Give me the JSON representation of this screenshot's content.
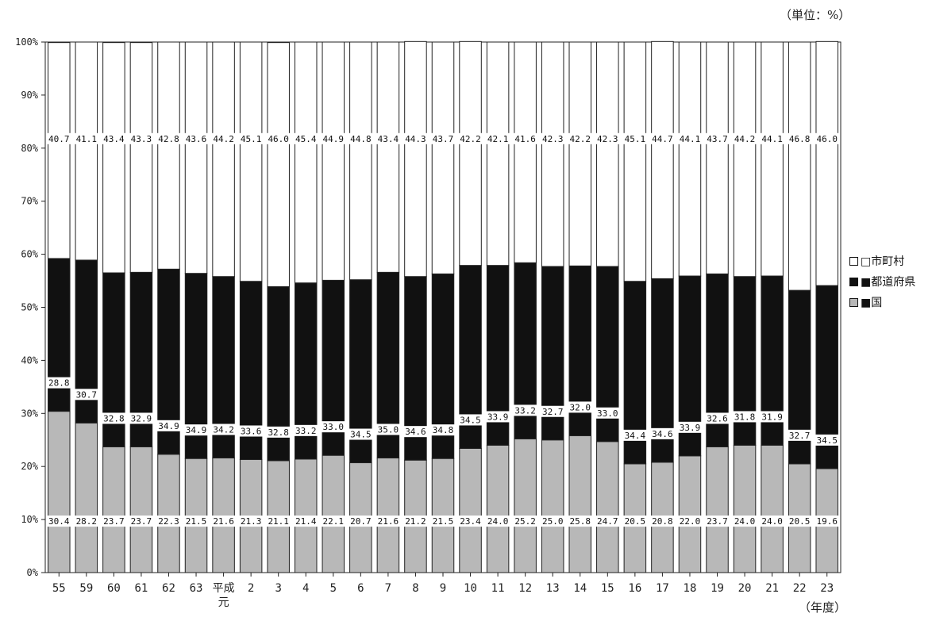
{
  "unit_label": "（単位：%）",
  "x_title": "（年度）",
  "legend": [
    {
      "label": "□市町村",
      "color": "#ffffff"
    },
    {
      "label": "■都道府県",
      "color": "#111111"
    },
    {
      "label": "■国",
      "color": "#b8b8b8"
    }
  ],
  "chart_data": {
    "type": "bar",
    "stacked": true,
    "categories": [
      "55",
      "59",
      "60",
      "61",
      "62",
      "63",
      "平成\n元",
      "2",
      "3",
      "4",
      "5",
      "6",
      "7",
      "8",
      "9",
      "10",
      "11",
      "12",
      "13",
      "14",
      "15",
      "16",
      "17",
      "18",
      "19",
      "20",
      "21",
      "22",
      "23"
    ],
    "series": [
      {
        "name": "国",
        "color": "#b8b8b8",
        "values": [
          30.4,
          28.2,
          23.7,
          23.7,
          22.3,
          21.5,
          21.6,
          21.3,
          21.1,
          21.4,
          22.1,
          20.7,
          21.6,
          21.2,
          21.5,
          23.4,
          24.0,
          25.2,
          25.0,
          25.8,
          24.7,
          20.5,
          20.8,
          22.0,
          23.7,
          24.0,
          24.0,
          20.5,
          19.6
        ]
      },
      {
        "name": "都道府県",
        "color": "#111111",
        "values": [
          28.8,
          30.7,
          32.8,
          32.9,
          34.9,
          34.9,
          34.2,
          33.6,
          32.8,
          33.2,
          33.0,
          34.5,
          35.0,
          34.6,
          34.8,
          34.5,
          33.9,
          33.2,
          32.7,
          32.0,
          33.0,
          34.4,
          34.6,
          33.9,
          32.6,
          31.8,
          31.9,
          32.7,
          34.5
        ]
      },
      {
        "name": "市町村",
        "color": "#ffffff",
        "values": [
          40.7,
          41.1,
          43.4,
          43.3,
          42.8,
          43.6,
          44.2,
          45.1,
          46.0,
          45.4,
          44.9,
          44.8,
          43.4,
          44.3,
          43.7,
          42.2,
          42.1,
          41.6,
          42.3,
          42.2,
          42.3,
          45.1,
          44.7,
          44.1,
          43.7,
          44.2,
          44.1,
          46.8,
          46.0
        ]
      }
    ],
    "y_ticks": [
      "0%",
      "10%",
      "20%",
      "30%",
      "40%",
      "50%",
      "60%",
      "70%",
      "80%",
      "90%",
      "100%"
    ],
    "ylim": [
      0,
      100
    ],
    "grid": false,
    "legend_position": "right"
  }
}
